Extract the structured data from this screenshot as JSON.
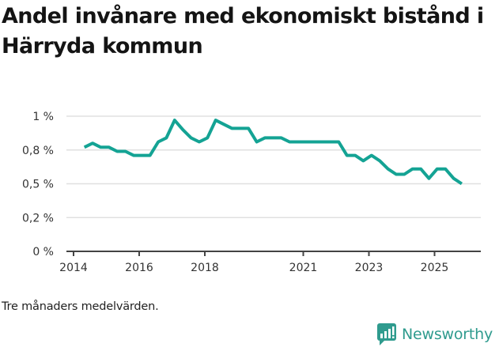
{
  "header": {
    "title": "Andel invånare med ekonomiskt bistånd i Härryda kommun"
  },
  "footer": {
    "note": "Tre månaders medelvärden.",
    "brand": "Newsworthy",
    "brand_icon": "bar-chart-speech-bubble-icon"
  },
  "colors": {
    "line": "#14a394",
    "grid": "#e0e0e0",
    "axis": "#444444",
    "brand": "#2f9b8e"
  },
  "chart_data": {
    "type": "line",
    "title": "Andel invånare med ekonomiskt bistånd i Härryda kommun",
    "subtitle": "",
    "xlabel": "",
    "ylabel": "",
    "ylim": [
      0,
      1.0
    ],
    "yticks": [
      0,
      0.25,
      0.5,
      0.75,
      1.0
    ],
    "ytick_labels": [
      "0 %",
      "0,2 %",
      "0,5 %",
      "0,8 %",
      "1 %"
    ],
    "xticks": [
      2014,
      2016,
      2018,
      2021,
      2023,
      2025
    ],
    "xtick_labels": [
      "2014",
      "2016",
      "2018",
      "2021",
      "2023",
      "2025"
    ],
    "xlim": [
      2013.9,
      2026.4
    ],
    "grid": true,
    "legend": null,
    "annotation": "Tre månaders medelvärden.",
    "series": [
      {
        "name": "Andel invånare med ekonomiskt bistånd (%)",
        "x": [
          2014.33,
          2014.58,
          2014.83,
          2015.08,
          2015.33,
          2015.58,
          2015.83,
          2016.08,
          2016.33,
          2016.58,
          2016.83,
          2017.08,
          2017.33,
          2017.58,
          2017.83,
          2018.08,
          2018.33,
          2018.58,
          2018.83,
          2019.08,
          2019.33,
          2019.58,
          2019.83,
          2020.08,
          2020.33,
          2020.58,
          2020.83,
          2021.08,
          2021.33,
          2021.58,
          2021.83,
          2022.08,
          2022.33,
          2022.58,
          2022.83,
          2023.08,
          2023.33,
          2023.58,
          2023.83,
          2024.08,
          2024.33,
          2024.58,
          2024.83,
          2025.08,
          2025.33,
          2025.58,
          2025.83
        ],
        "values": [
          0.77,
          0.8,
          0.77,
          0.77,
          0.74,
          0.74,
          0.71,
          0.71,
          0.71,
          0.81,
          0.84,
          0.97,
          0.9,
          0.84,
          0.81,
          0.84,
          0.97,
          0.94,
          0.91,
          0.91,
          0.91,
          0.81,
          0.84,
          0.84,
          0.84,
          0.81,
          0.81,
          0.81,
          0.81,
          0.81,
          0.81,
          0.81,
          0.71,
          0.71,
          0.67,
          0.71,
          0.67,
          0.61,
          0.57,
          0.57,
          0.61,
          0.61,
          0.54,
          0.61,
          0.61,
          0.54,
          0.5
        ]
      }
    ]
  }
}
